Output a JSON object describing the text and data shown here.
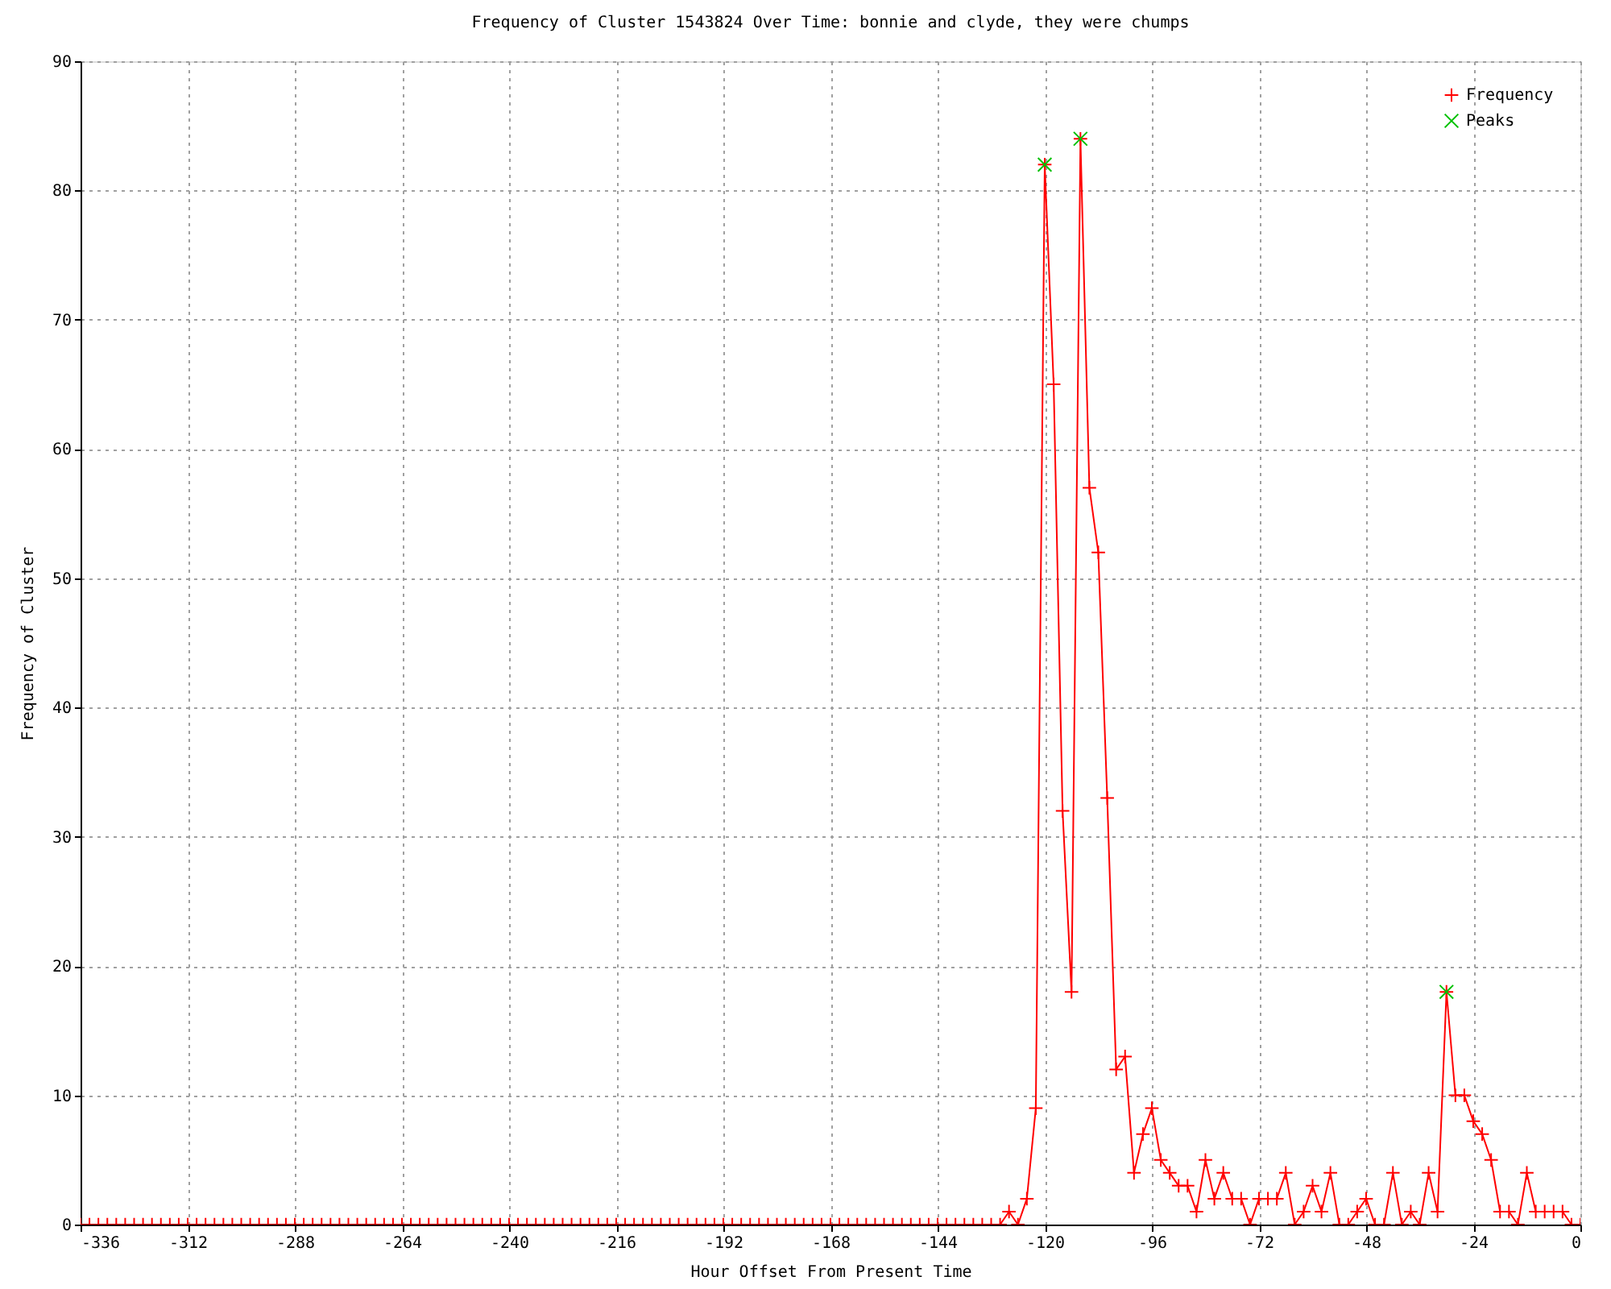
{
  "chart_data": {
    "type": "line",
    "title": "Frequency of Cluster 1543824 Over Time: bonnie and clyde, they were chumps",
    "xlabel": "Hour Offset From Present Time",
    "ylabel": "Frequency of Cluster",
    "x": [
      -336,
      -334,
      -332,
      -330,
      -328,
      -326,
      -324,
      -322,
      -320,
      -318,
      -316,
      -314,
      -312,
      -310,
      -308,
      -306,
      -304,
      -302,
      -300,
      -298,
      -296,
      -294,
      -292,
      -290,
      -288,
      -286,
      -284,
      -282,
      -280,
      -278,
      -276,
      -274,
      -272,
      -270,
      -268,
      -266,
      -264,
      -262,
      -260,
      -258,
      -256,
      -254,
      -252,
      -250,
      -248,
      -246,
      -244,
      -242,
      -240,
      -238,
      -236,
      -234,
      -232,
      -230,
      -228,
      -226,
      -224,
      -222,
      -220,
      -218,
      -216,
      -214,
      -212,
      -210,
      -208,
      -206,
      -204,
      -202,
      -200,
      -198,
      -196,
      -194,
      -192,
      -190,
      -188,
      -186,
      -184,
      -182,
      -180,
      -178,
      -176,
      -174,
      -172,
      -170,
      -168,
      -166,
      -164,
      -162,
      -160,
      -158,
      -156,
      -154,
      -152,
      -150,
      -148,
      -146,
      -144,
      -142,
      -140,
      -138,
      -136,
      -134,
      -132,
      -130,
      -128,
      -126,
      -124,
      -122,
      -120,
      -118,
      -116,
      -114,
      -112,
      -110,
      -108,
      -106,
      -104,
      -102,
      -100,
      -98,
      -96,
      -94,
      -92,
      -90,
      -88,
      -86,
      -84,
      -82,
      -80,
      -78,
      -76,
      -74,
      -72,
      -70,
      -68,
      -66,
      -64,
      -62,
      -60,
      -58,
      -56,
      -54,
      -52,
      -50,
      -48,
      -46,
      -44,
      -42,
      -40,
      -38,
      -36,
      -34,
      -32,
      -30,
      -28,
      -26,
      -24,
      -22,
      -20,
      -18,
      -16,
      -14,
      -12,
      -10,
      -8,
      -6,
      -4,
      -2,
      0
    ],
    "series": [
      {
        "name": "Frequency",
        "color": "#ff0000",
        "marker": "cross",
        "values": [
          0,
          0,
          0,
          0,
          0,
          0,
          0,
          0,
          0,
          0,
          0,
          0,
          0,
          0,
          0,
          0,
          0,
          0,
          0,
          0,
          0,
          0,
          0,
          0,
          0,
          0,
          0,
          0,
          0,
          0,
          0,
          0,
          0,
          0,
          0,
          0,
          0,
          0,
          0,
          0,
          0,
          0,
          0,
          0,
          0,
          0,
          0,
          0,
          0,
          0,
          0,
          0,
          0,
          0,
          0,
          0,
          0,
          0,
          0,
          0,
          0,
          0,
          0,
          0,
          0,
          0,
          0,
          0,
          0,
          0,
          0,
          0,
          0,
          0,
          0,
          0,
          0,
          0,
          0,
          0,
          0,
          0,
          0,
          0,
          0,
          0,
          0,
          0,
          0,
          0,
          0,
          0,
          0,
          0,
          0,
          0,
          0,
          0,
          0,
          0,
          0,
          0,
          0,
          0,
          1,
          0,
          2,
          9,
          82,
          65,
          32,
          18,
          84,
          57,
          52,
          33,
          12,
          13,
          4,
          7,
          9,
          5,
          4,
          3,
          3,
          1,
          5,
          2,
          4,
          2,
          2,
          0,
          2,
          2,
          2,
          4,
          0,
          1,
          3,
          1,
          4,
          0,
          0,
          1,
          2,
          0,
          0,
          4,
          0,
          1,
          0,
          4,
          1,
          18,
          10,
          10,
          8,
          7,
          5,
          1,
          1,
          0,
          4,
          1,
          1,
          1,
          1,
          0,
          0
        ]
      },
      {
        "name": "Peaks",
        "type": "scatter",
        "color": "#00c000",
        "marker": "cross",
        "x": [
          -120,
          -112,
          -30
        ],
        "values": [
          82,
          84,
          18
        ]
      }
    ],
    "xlim": [
      -336,
      0
    ],
    "xticks": [
      -336,
      -312,
      -288,
      -264,
      -240,
      -216,
      -192,
      -168,
      -144,
      -120,
      -96,
      -72,
      -48,
      -24,
      0
    ],
    "ylim": [
      0,
      90
    ],
    "yticks": [
      0,
      10,
      20,
      30,
      40,
      50,
      60,
      70,
      80,
      90
    ],
    "grid": true,
    "legend": "top right",
    "line_style": "solid"
  }
}
